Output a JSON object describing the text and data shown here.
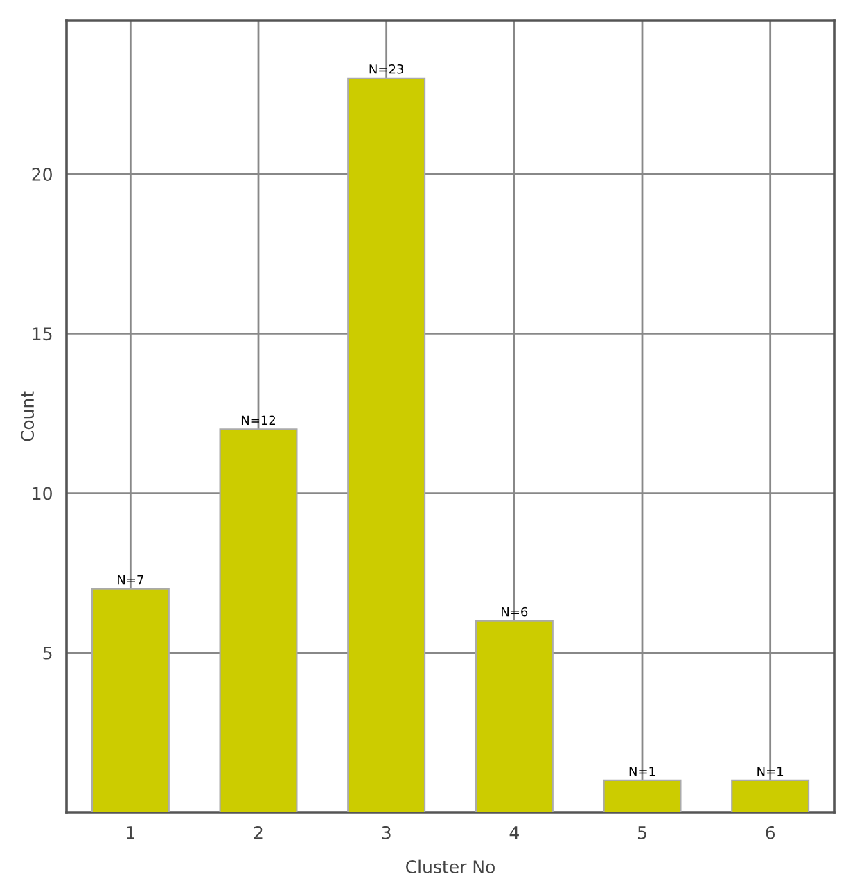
{
  "chart_data": {
    "type": "bar",
    "xlabel": "Cluster No",
    "ylabel": "Count",
    "categories": [
      "1",
      "2",
      "3",
      "4",
      "5",
      "6"
    ],
    "values": [
      7,
      12,
      23,
      6,
      1,
      1
    ],
    "color": "#cccc00",
    "value_labels": [
      "N=7",
      "N=12",
      "N=23",
      "N=6",
      "N=1",
      "N=1"
    ],
    "ylim": [
      0,
      24.8
    ],
    "yticks": [
      5,
      10,
      15,
      20
    ],
    "grid": true,
    "legend": false
  }
}
